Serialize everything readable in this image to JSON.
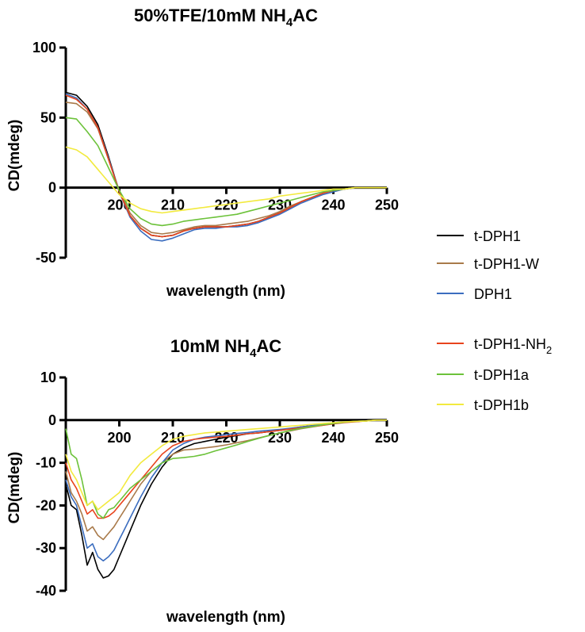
{
  "legend": {
    "entries": [
      {
        "label": "t-DPH1",
        "sub": "",
        "color": "#000000"
      },
      {
        "label": "t-DPH1-W",
        "sub": "",
        "color": "#a97a4a"
      },
      {
        "label": "DPH1",
        "sub": "",
        "color": "#3b6dbf"
      },
      {
        "label": "t-DPH1-NH",
        "sub": "2",
        "color": "#e8441d"
      },
      {
        "label": "t-DPH1a",
        "sub": "",
        "color": "#6cc23a"
      },
      {
        "label": "t-DPH1b",
        "sub": "",
        "color": "#f2ea3e"
      }
    ]
  },
  "chart_data": [
    {
      "type": "line",
      "title": "50%TFE/10mM NH",
      "title_sub": "4",
      "title_after": "AC",
      "xlabel": "wavelength (nm)",
      "ylabel": "CD(mdeg)",
      "xlim": [
        190,
        250
      ],
      "ylim": [
        -50,
        100
      ],
      "xticks": [
        200,
        210,
        220,
        230,
        240,
        250
      ],
      "yticks": [
        -50,
        0,
        50,
        100
      ],
      "grid": false,
      "series": [
        {
          "name": "t-DPH1",
          "color": "#000000",
          "x": [
            190,
            192,
            194,
            196,
            198,
            200,
            202,
            204,
            206,
            208,
            210,
            212,
            214,
            216,
            218,
            220,
            222,
            224,
            226,
            228,
            230,
            232,
            234,
            236,
            238,
            240,
            242,
            244,
            246,
            248,
            250
          ],
          "y": [
            68,
            66,
            58,
            45,
            22,
            -3,
            -20,
            -29,
            -34,
            -35,
            -34,
            -31,
            -29,
            -28,
            -28,
            -28,
            -27,
            -26,
            -24,
            -21,
            -18,
            -14,
            -10,
            -7,
            -4,
            -2,
            -1,
            0,
            0,
            0,
            0
          ]
        },
        {
          "name": "t-DPH1-W",
          "color": "#a97a4a",
          "x": [
            190,
            192,
            194,
            196,
            198,
            200,
            202,
            204,
            206,
            208,
            210,
            212,
            214,
            216,
            218,
            220,
            222,
            224,
            226,
            228,
            230,
            232,
            234,
            236,
            238,
            240,
            242,
            244,
            246,
            248,
            250
          ],
          "y": [
            61,
            60,
            54,
            42,
            20,
            -2,
            -18,
            -27,
            -32,
            -33,
            -32,
            -30,
            -28,
            -27,
            -27,
            -26,
            -25,
            -24,
            -22,
            -20,
            -17,
            -13,
            -10,
            -7,
            -4,
            -2,
            -1,
            0,
            0,
            0,
            0
          ]
        },
        {
          "name": "DPH1",
          "color": "#3b6dbf",
          "x": [
            190,
            192,
            194,
            196,
            198,
            200,
            202,
            204,
            206,
            208,
            210,
            212,
            214,
            216,
            218,
            220,
            222,
            224,
            226,
            228,
            230,
            232,
            234,
            236,
            238,
            240,
            242,
            244,
            246,
            248,
            250
          ],
          "y": [
            67,
            64,
            56,
            43,
            21,
            -3,
            -21,
            -31,
            -37,
            -38,
            -36,
            -33,
            -30,
            -29,
            -29,
            -28,
            -28,
            -27,
            -25,
            -22,
            -19,
            -15,
            -11,
            -8,
            -5,
            -3,
            -1,
            0,
            0,
            0,
            0
          ]
        },
        {
          "name": "t-DPH1-NH2",
          "color": "#e8441d",
          "x": [
            190,
            192,
            194,
            196,
            198,
            200,
            202,
            204,
            206,
            208,
            210,
            212,
            214,
            216,
            218,
            220,
            222,
            224,
            226,
            228,
            230,
            232,
            234,
            236,
            238,
            240,
            242,
            244,
            246,
            248,
            250
          ],
          "y": [
            66,
            63,
            56,
            43,
            20,
            -3,
            -20,
            -29,
            -34,
            -35,
            -34,
            -31,
            -29,
            -28,
            -28,
            -28,
            -27,
            -26,
            -24,
            -21,
            -18,
            -14,
            -10,
            -7,
            -4,
            -2,
            -1,
            0,
            0,
            0,
            0
          ]
        },
        {
          "name": "t-DPH1a",
          "color": "#6cc23a",
          "x": [
            190,
            192,
            194,
            196,
            198,
            200,
            202,
            204,
            206,
            208,
            210,
            212,
            214,
            216,
            218,
            220,
            222,
            224,
            226,
            228,
            230,
            232,
            234,
            236,
            238,
            240,
            242,
            244,
            246,
            248,
            250
          ],
          "y": [
            50,
            49,
            40,
            30,
            14,
            -2,
            -15,
            -22,
            -26,
            -27,
            -26,
            -24,
            -23,
            -22,
            -21,
            -20,
            -19,
            -17,
            -15,
            -13,
            -11,
            -9,
            -7,
            -5,
            -3,
            -2,
            -1,
            0,
            0,
            0,
            0
          ]
        },
        {
          "name": "t-DPH1b",
          "color": "#f2ea3e",
          "x": [
            190,
            192,
            194,
            196,
            198,
            200,
            202,
            204,
            206,
            208,
            210,
            212,
            214,
            216,
            218,
            220,
            222,
            224,
            226,
            228,
            230,
            232,
            234,
            236,
            238,
            240,
            242,
            244,
            246,
            248,
            250
          ],
          "y": [
            29,
            27,
            22,
            13,
            4,
            -5,
            -11,
            -15,
            -17,
            -18,
            -17,
            -16,
            -15,
            -14,
            -13,
            -12,
            -11,
            -10,
            -9,
            -8,
            -6,
            -5,
            -4,
            -3,
            -2,
            -1,
            -1,
            0,
            0,
            0,
            0
          ]
        }
      ]
    },
    {
      "type": "line",
      "title": "10mM NH",
      "title_sub": "4",
      "title_after": "AC",
      "xlabel": "wavelength (nm)",
      "ylabel": "CD(mdeg)",
      "xlim": [
        190,
        250
      ],
      "ylim": [
        -40,
        10
      ],
      "xticks": [
        200,
        210,
        220,
        230,
        240,
        250
      ],
      "yticks": [
        -40,
        -30,
        -20,
        -10,
        0,
        10
      ],
      "grid": false,
      "series": [
        {
          "name": "t-DPH1",
          "color": "#000000",
          "x": [
            190,
            191,
            192,
            193,
            194,
            195,
            196,
            197,
            198,
            199,
            200,
            201,
            202,
            204,
            206,
            208,
            210,
            212,
            214,
            216,
            218,
            220,
            222,
            224,
            226,
            228,
            230,
            232,
            234,
            236,
            238,
            240,
            242,
            244,
            246,
            248,
            250
          ],
          "y": [
            -15,
            -20,
            -21,
            -27,
            -34,
            -31,
            -35,
            -37,
            -36.5,
            -35,
            -32,
            -29,
            -26,
            -20,
            -15,
            -11,
            -8,
            -6.5,
            -5.5,
            -5,
            -4.5,
            -4,
            -3.6,
            -3.2,
            -3,
            -2.7,
            -2.4,
            -2,
            -1.6,
            -1.3,
            -1,
            -0.7,
            -0.5,
            -0.3,
            -0.2,
            0,
            0
          ]
        },
        {
          "name": "t-DPH1-W",
          "color": "#a97a4a",
          "x": [
            190,
            191,
            192,
            193,
            194,
            195,
            196,
            197,
            198,
            199,
            200,
            201,
            202,
            204,
            206,
            208,
            210,
            212,
            214,
            216,
            218,
            220,
            222,
            224,
            226,
            228,
            230,
            232,
            234,
            236,
            238,
            240,
            242,
            244,
            246,
            248,
            250
          ],
          "y": [
            -12,
            -17,
            -19,
            -22,
            -26,
            -25,
            -27,
            -28,
            -26.5,
            -25,
            -23,
            -21,
            -19,
            -15,
            -12,
            -10,
            -8,
            -7,
            -6.8,
            -6.5,
            -6.2,
            -5.8,
            -5.3,
            -4.8,
            -4.2,
            -3.6,
            -3,
            -2.5,
            -2,
            -1.6,
            -1.2,
            -0.8,
            -0.5,
            -0.3,
            -0.2,
            0,
            0
          ]
        },
        {
          "name": "DPH1",
          "color": "#3b6dbf",
          "x": [
            190,
            191,
            192,
            193,
            194,
            195,
            196,
            197,
            198,
            199,
            200,
            201,
            202,
            204,
            206,
            208,
            210,
            212,
            214,
            216,
            218,
            220,
            222,
            224,
            226,
            228,
            230,
            232,
            234,
            236,
            238,
            240,
            242,
            244,
            246,
            248,
            250
          ],
          "y": [
            -14,
            -18,
            -20,
            -25,
            -30,
            -29,
            -32,
            -33,
            -32,
            -30.5,
            -28,
            -25.5,
            -23,
            -18,
            -13.5,
            -10,
            -7,
            -5.5,
            -4.5,
            -4,
            -3.7,
            -3.4,
            -3.1,
            -2.9,
            -2.6,
            -2.4,
            -2.2,
            -1.9,
            -1.6,
            -1.3,
            -1,
            -0.7,
            -0.5,
            -0.3,
            -0.2,
            0,
            0
          ]
        },
        {
          "name": "t-DPH1-NH2",
          "color": "#e8441d",
          "x": [
            190,
            191,
            192,
            193,
            194,
            195,
            196,
            197,
            198,
            199,
            200,
            201,
            202,
            204,
            206,
            208,
            210,
            212,
            214,
            216,
            218,
            220,
            222,
            224,
            226,
            228,
            230,
            232,
            234,
            236,
            238,
            240,
            242,
            244,
            246,
            248,
            250
          ],
          "y": [
            -10,
            -14,
            -16,
            -19,
            -22,
            -21,
            -23,
            -23,
            -22.5,
            -21.5,
            -20,
            -18.5,
            -17,
            -14,
            -11,
            -8,
            -6,
            -5,
            -4.5,
            -4.2,
            -4,
            -3.8,
            -3.5,
            -3.2,
            -3,
            -2.7,
            -2.4,
            -2.1,
            -1.8,
            -1.5,
            -1.2,
            -0.9,
            -0.6,
            -0.4,
            -0.2,
            0,
            0
          ]
        },
        {
          "name": "t-DPH1a",
          "color": "#6cc23a",
          "x": [
            190,
            191,
            192,
            193,
            194,
            195,
            196,
            197,
            198,
            199,
            200,
            201,
            202,
            204,
            206,
            208,
            210,
            212,
            214,
            216,
            218,
            220,
            222,
            224,
            226,
            228,
            230,
            232,
            234,
            236,
            238,
            240,
            242,
            244,
            246,
            248,
            250
          ],
          "y": [
            -2,
            -8,
            -9,
            -14,
            -20,
            -19,
            -22,
            -23,
            -21,
            -20.5,
            -19,
            -17.5,
            -16,
            -14,
            -12,
            -10,
            -9,
            -8.8,
            -8.5,
            -8,
            -7.2,
            -6.5,
            -5.8,
            -5,
            -4.3,
            -3.6,
            -3,
            -2.4,
            -1.9,
            -1.5,
            -1.1,
            -0.8,
            -0.5,
            -0.3,
            -0.2,
            0,
            0
          ]
        },
        {
          "name": "t-DPH1b",
          "color": "#f2ea3e",
          "x": [
            190,
            191,
            192,
            193,
            194,
            195,
            196,
            197,
            198,
            199,
            200,
            201,
            202,
            204,
            206,
            208,
            210,
            212,
            214,
            216,
            218,
            220,
            222,
            224,
            226,
            228,
            230,
            232,
            234,
            236,
            238,
            240,
            242,
            244,
            246,
            248,
            250
          ],
          "y": [
            -8,
            -12,
            -14,
            -17,
            -20,
            -19,
            -21,
            -20,
            -19,
            -18,
            -17,
            -15,
            -13,
            -10,
            -8,
            -6,
            -4.5,
            -3.8,
            -3.4,
            -3,
            -2.8,
            -2.6,
            -2.4,
            -2.2,
            -2,
            -1.8,
            -1.6,
            -1.4,
            -1.2,
            -1,
            -0.8,
            -0.6,
            -0.4,
            -0.3,
            -0.2,
            0,
            0
          ]
        }
      ]
    }
  ]
}
